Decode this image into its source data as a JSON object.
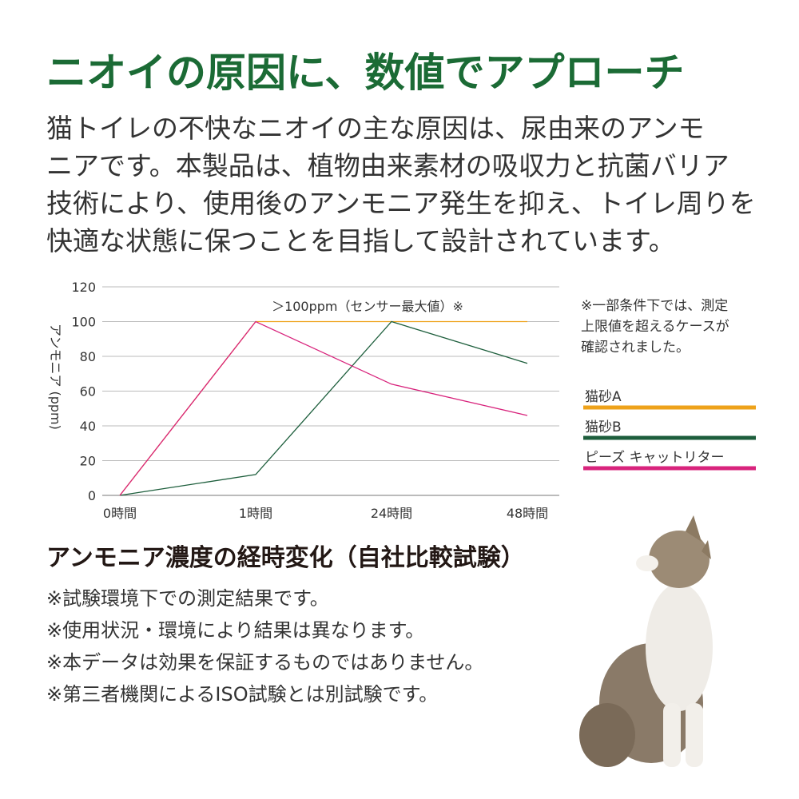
{
  "header": {
    "title": "ニオイの原因に、数値でアプローチ"
  },
  "intro": {
    "lines": [
      "猫トイレの不快なニオイの主な原因は、尿由来のアンモ",
      "ニアです。本製品は、植物由来素材の吸収力と抗菌バリア",
      "技術により、使用後のアンモニア発生を抑え、トイレ周りを",
      "快適な状態に保つことを目指して設計されています。"
    ]
  },
  "chart_data": {
    "type": "line",
    "categories": [
      "0時間",
      "1時間",
      "24時間",
      "48時間"
    ],
    "y_label": "アンモニア (ppm)",
    "annotation": "＞100ppm（センサー最大値）※",
    "ylim": [
      0,
      120
    ],
    "yticks": [
      0,
      20,
      40,
      60,
      80,
      100,
      120
    ],
    "grid": true,
    "series": [
      {
        "name": "猫砂A",
        "color": "#eea21a",
        "values": [
          0,
          100,
          100,
          100
        ]
      },
      {
        "name": "猫砂B",
        "color": "#1d5e3c",
        "values": [
          0,
          12,
          100,
          76
        ]
      },
      {
        "name": "ピーズ キャットリター",
        "color": "#d8237c",
        "values": [
          0,
          100,
          64,
          46
        ]
      }
    ],
    "side_note": [
      "※一部条件下では、測定",
      "上限値を超えるケースが",
      "確認されました。"
    ]
  },
  "section": {
    "title": "アンモニア濃度の経時変化（自社比較試験）",
    "notes": [
      "※試験環境下での測定結果です。",
      "※使用状況・環境により結果は異なります。",
      "※本データは効果を保証するものではありません。",
      "※第三者機関によるISO試験とは別試験です。"
    ]
  }
}
